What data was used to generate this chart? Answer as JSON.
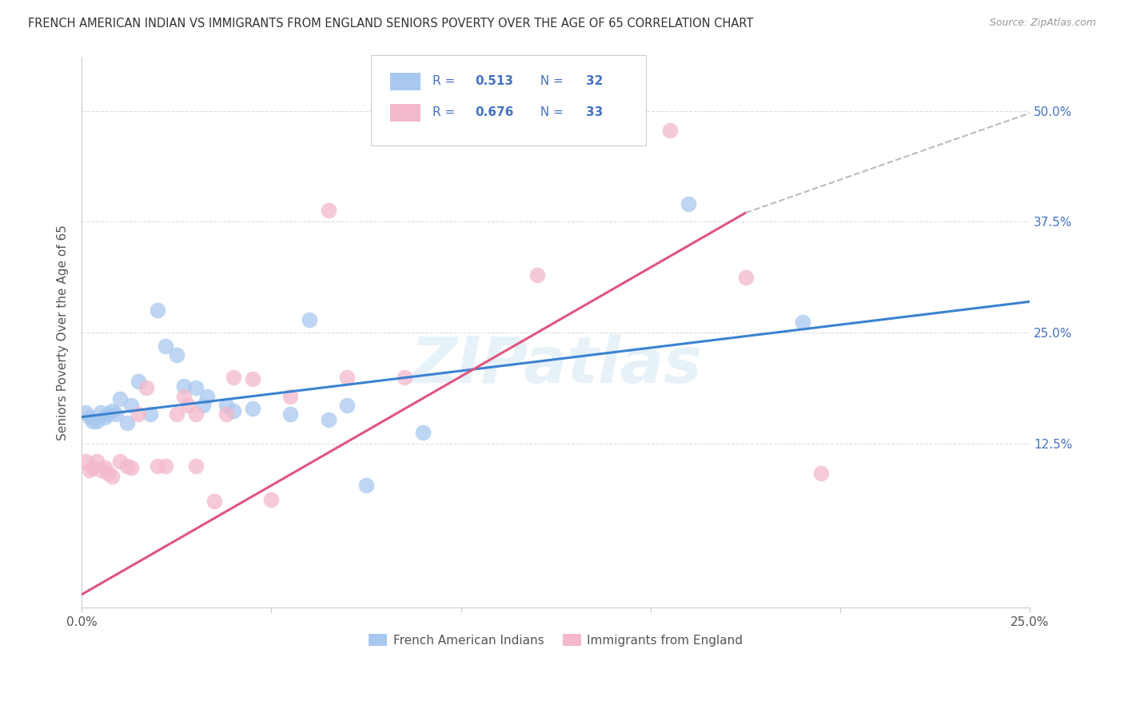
{
  "title": "FRENCH AMERICAN INDIAN VS IMMIGRANTS FROM ENGLAND SENIORS POVERTY OVER THE AGE OF 65 CORRELATION CHART",
  "source": "Source: ZipAtlas.com",
  "ylabel": "Seniors Poverty Over the Age of 65",
  "xlim": [
    0,
    0.25
  ],
  "ylim": [
    -0.06,
    0.56
  ],
  "r_blue": 0.513,
  "n_blue": 32,
  "r_pink": 0.676,
  "n_pink": 33,
  "legend_label_blue": "French American Indians",
  "legend_label_pink": "Immigrants from England",
  "blue_color": "#A8C8F0",
  "pink_color": "#F4B8CC",
  "blue_line_color": "#3B82D0",
  "pink_line_color": "#E05580",
  "legend_text_color": "#4472C4",
  "watermark": "ZIPatlas",
  "background_color": "#FFFFFF",
  "grid_color": "#DDDDDD",
  "blue_scatter": [
    [
      0.001,
      0.16
    ],
    [
      0.002,
      0.155
    ],
    [
      0.003,
      0.15
    ],
    [
      0.004,
      0.15
    ],
    [
      0.005,
      0.16
    ],
    [
      0.006,
      0.155
    ],
    [
      0.007,
      0.158
    ],
    [
      0.008,
      0.162
    ],
    [
      0.009,
      0.158
    ],
    [
      0.01,
      0.175
    ],
    [
      0.012,
      0.148
    ],
    [
      0.013,
      0.168
    ],
    [
      0.015,
      0.195
    ],
    [
      0.018,
      0.158
    ],
    [
      0.02,
      0.275
    ],
    [
      0.022,
      0.235
    ],
    [
      0.025,
      0.225
    ],
    [
      0.027,
      0.19
    ],
    [
      0.03,
      0.188
    ],
    [
      0.032,
      0.168
    ],
    [
      0.033,
      0.178
    ],
    [
      0.038,
      0.168
    ],
    [
      0.04,
      0.162
    ],
    [
      0.045,
      0.165
    ],
    [
      0.055,
      0.158
    ],
    [
      0.06,
      0.265
    ],
    [
      0.065,
      0.152
    ],
    [
      0.07,
      0.168
    ],
    [
      0.075,
      0.078
    ],
    [
      0.09,
      0.138
    ],
    [
      0.16,
      0.395
    ],
    [
      0.19,
      0.262
    ]
  ],
  "pink_scatter": [
    [
      0.001,
      0.105
    ],
    [
      0.002,
      0.095
    ],
    [
      0.003,
      0.098
    ],
    [
      0.004,
      0.105
    ],
    [
      0.005,
      0.095
    ],
    [
      0.006,
      0.098
    ],
    [
      0.007,
      0.092
    ],
    [
      0.008,
      0.088
    ],
    [
      0.01,
      0.105
    ],
    [
      0.012,
      0.1
    ],
    [
      0.013,
      0.098
    ],
    [
      0.015,
      0.158
    ],
    [
      0.017,
      0.188
    ],
    [
      0.02,
      0.1
    ],
    [
      0.022,
      0.1
    ],
    [
      0.025,
      0.158
    ],
    [
      0.027,
      0.178
    ],
    [
      0.028,
      0.168
    ],
    [
      0.03,
      0.158
    ],
    [
      0.03,
      0.1
    ],
    [
      0.035,
      0.06
    ],
    [
      0.038,
      0.158
    ],
    [
      0.04,
      0.2
    ],
    [
      0.045,
      0.198
    ],
    [
      0.05,
      0.062
    ],
    [
      0.055,
      0.178
    ],
    [
      0.065,
      0.388
    ],
    [
      0.07,
      0.2
    ],
    [
      0.085,
      0.2
    ],
    [
      0.12,
      0.315
    ],
    [
      0.155,
      0.478
    ],
    [
      0.175,
      0.312
    ],
    [
      0.195,
      0.092
    ]
  ],
  "blue_line_x0": 0.0,
  "blue_line_y0": 0.155,
  "blue_line_x1": 0.25,
  "blue_line_y1": 0.285,
  "pink_line_x0": 0.0,
  "pink_line_y0": -0.045,
  "pink_line_x1": 0.175,
  "pink_line_y1": 0.385,
  "dash_line_x0": 0.175,
  "dash_line_y0": 0.385,
  "dash_line_x1": 0.255,
  "dash_line_y1": 0.505
}
